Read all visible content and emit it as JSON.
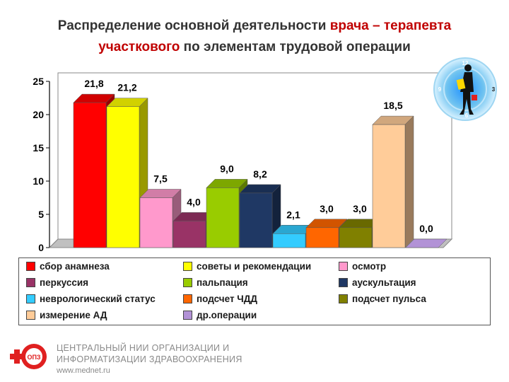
{
  "title": {
    "part1": "Распределение основной деятельности ",
    "part2": "врача – терапевта",
    "part3": "участкового",
    "part4": " по элементам трудовой операции"
  },
  "chart_data": {
    "type": "bar",
    "categories": [
      "сбор анамнеза",
      "советы и рекомендации",
      "осмотр",
      "перкуссия",
      "пальпация",
      "аускультация",
      "неврологический статус",
      "подсчет ЧДД",
      "подсчет пульса",
      "измерение АД",
      "др.операции"
    ],
    "values": [
      21.8,
      21.2,
      7.5,
      4.0,
      9.0,
      8.2,
      2.1,
      3.0,
      3.0,
      18.5,
      0.0
    ],
    "value_labels": [
      "21,8",
      "21,2",
      "7,5",
      "4,0",
      "9,0",
      "8,2",
      "2,1",
      "3,0",
      "3,0",
      "18,5",
      "0,0"
    ],
    "colors": [
      "#ff0000",
      "#ffff00",
      "#ff99cc",
      "#993366",
      "#99cc00",
      "#1f3864",
      "#33ccff",
      "#ff6600",
      "#808000",
      "#ffcc99",
      "#b292d6"
    ],
    "yticks": [
      "0",
      "5",
      "10",
      "15",
      "20",
      "25"
    ],
    "ylim": [
      0,
      25
    ],
    "grid": false,
    "legend_position": "bottom"
  },
  "footer": {
    "org_line1": "ЦЕНТРАЛЬНЫЙ НИИ ОРГАНИЗАЦИИ И",
    "org_line2": "ИНФОРМАТИЗАЦИИ ЗДРАВООХРАНЕНИЯ",
    "url": "www.mednet.ru",
    "logo_text": "ОПЗ"
  },
  "clock_numbers": [
    "12",
    "3",
    "6",
    "9"
  ]
}
